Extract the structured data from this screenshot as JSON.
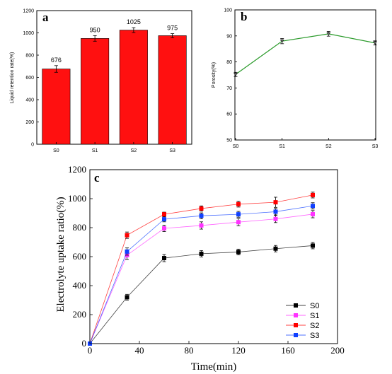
{
  "chart_data": [
    {
      "panel": "a",
      "type": "bar",
      "categories": [
        "S0",
        "S1",
        "S2",
        "S3"
      ],
      "values": [
        676,
        950,
        1025,
        975
      ],
      "errors": [
        30,
        25,
        22,
        18
      ],
      "data_labels": [
        "676",
        "950",
        "1025",
        "975"
      ],
      "ylabel": "Liquid retention rate(%)",
      "xlabel": "",
      "ylim": [
        0,
        1200
      ],
      "yticks": [
        0,
        200,
        400,
        600,
        800,
        1000,
        1200
      ],
      "bar_color": "#ff1010"
    },
    {
      "panel": "b",
      "type": "line",
      "categories": [
        "S0",
        "S1",
        "S2",
        "S3"
      ],
      "values": [
        75.2,
        88.0,
        90.8,
        87.3
      ],
      "errors": [
        0.8,
        1.0,
        0.9,
        0.8
      ],
      "ylabel": "Porosity(%)",
      "xlabel": "",
      "ylim": [
        50,
        100
      ],
      "yticks": [
        50,
        60,
        70,
        80,
        90,
        100
      ],
      "line_color": "#2a9a2a"
    },
    {
      "panel": "c",
      "type": "line",
      "x": [
        0,
        30,
        60,
        90,
        120,
        150,
        180
      ],
      "series": [
        {
          "name": "S0",
          "color": "#000000",
          "values": [
            0,
            320,
            590,
            620,
            632,
            655,
            676
          ],
          "errors": [
            0,
            20,
            25,
            22,
            20,
            22,
            22
          ]
        },
        {
          "name": "S1",
          "color": "#ff33ff",
          "values": [
            0,
            610,
            795,
            815,
            838,
            860,
            893
          ],
          "errors": [
            0,
            30,
            22,
            25,
            25,
            25,
            25
          ]
        },
        {
          "name": "S2",
          "color": "#ff0000",
          "values": [
            0,
            748,
            892,
            932,
            962,
            975,
            1025
          ],
          "errors": [
            0,
            22,
            15,
            18,
            20,
            35,
            20
          ]
        },
        {
          "name": "S3",
          "color": "#1040ff",
          "values": [
            0,
            635,
            858,
            882,
            892,
            910,
            950
          ],
          "errors": [
            0,
            25,
            18,
            20,
            20,
            22,
            22
          ]
        }
      ],
      "xlabel": "Time(min)",
      "ylabel": "Electrolyte uptake ratio(%)",
      "xlim": [
        0,
        200
      ],
      "ylim": [
        0,
        1200
      ],
      "xticks": [
        0,
        40,
        80,
        120,
        160,
        200
      ],
      "yticks": [
        0,
        200,
        400,
        600,
        800,
        1000,
        1200
      ],
      "legend_position": "bottom-right"
    }
  ]
}
